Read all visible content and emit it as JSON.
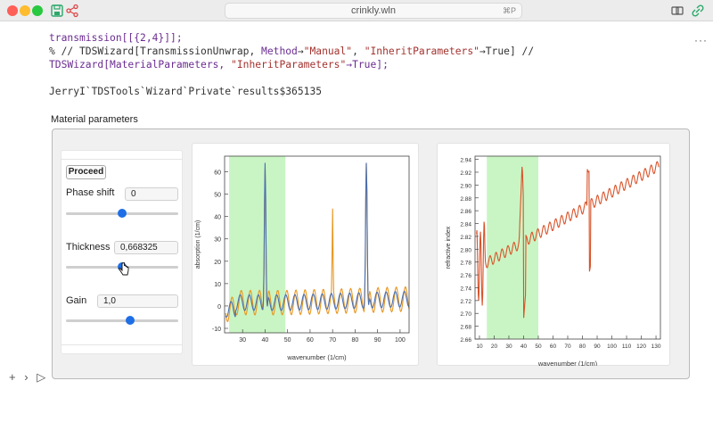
{
  "window": {
    "title": "crinkly.wln",
    "shortcut": "⌘P"
  },
  "code": {
    "line1": "transmission[[{2,4}]];",
    "line2_a": "% // TDSWizard[TransmissionUnwrap, ",
    "line2_kw": "Method",
    "line2_b": "→",
    "line2_str": "\"Manual\"",
    "line2_c": ", ",
    "line2_str2": "\"InheritParameters\"",
    "line2_d": "→True] //",
    "line3_a": "TDSWizard[MaterialParameters, ",
    "line3_str": "\"InheritParameters\"",
    "line3_b": "→True];",
    "output": "JerryI`TDSTools`Wizard`Private`results$365135"
  },
  "output": {
    "section_label": "Material parameters",
    "proceed_label": "Proceed",
    "controls": [
      {
        "label": "Phase shift",
        "value": "0",
        "slider": 0.5
      },
      {
        "label": "Thickness",
        "value": "0,668325",
        "slider": 0.5
      },
      {
        "label": "Gain",
        "value": "1,0",
        "slider": 0.57
      }
    ]
  },
  "chart_data": [
    {
      "type": "line",
      "xlabel": "wavenumber (1/cm)",
      "ylabel": "absorption (1/cm)",
      "xlim": [
        22,
        104
      ],
      "ylim": [
        -12,
        67
      ],
      "xticks": [
        "30",
        "40",
        "50",
        "60",
        "70",
        "80",
        "90",
        "100"
      ],
      "yticks": [
        "-10",
        "0",
        "10",
        "20",
        "30",
        "40",
        "50",
        "60"
      ],
      "highlight_range": [
        24,
        49
      ],
      "series": [
        {
          "color": "#e8961e",
          "peaks": [
            40,
            70,
            85
          ],
          "oscillation_amplitude": 5.5
        },
        {
          "color": "#4a6fb0",
          "peaks": [
            40,
            85
          ],
          "oscillation_amplitude": 3.5
        }
      ]
    },
    {
      "type": "line",
      "xlabel": "wavenumber (1/cm)",
      "ylabel": "refractive index",
      "xlim": [
        7,
        133
      ],
      "ylim": [
        2.66,
        2.945
      ],
      "xticks": [
        "10",
        "20",
        "30",
        "40",
        "50",
        "60",
        "70",
        "80",
        "90",
        "100",
        "110",
        "120",
        "130"
      ],
      "yticks": [
        "2.66",
        "2.68",
        "2.70",
        "2.72",
        "2.74",
        "2.76",
        "2.78",
        "2.80",
        "2.82",
        "2.84",
        "2.86",
        "2.88",
        "2.90",
        "2.92",
        "2.94"
      ],
      "highlight_range": [
        15,
        50
      ],
      "series": [
        {
          "color": "#d9532a",
          "start": 2.77,
          "end": 2.93,
          "dip_at": 40,
          "dip_to": 2.69,
          "spike_to": 2.935
        }
      ]
    }
  ],
  "colors": {
    "highlight": "#c9f5c4",
    "accent": "#1e6ee6"
  },
  "icons": [
    "save-icon",
    "share-icon",
    "translate-icon",
    "link-icon",
    "more-icon",
    "add-cell-icon",
    "chevron-right-icon",
    "run-icon"
  ]
}
